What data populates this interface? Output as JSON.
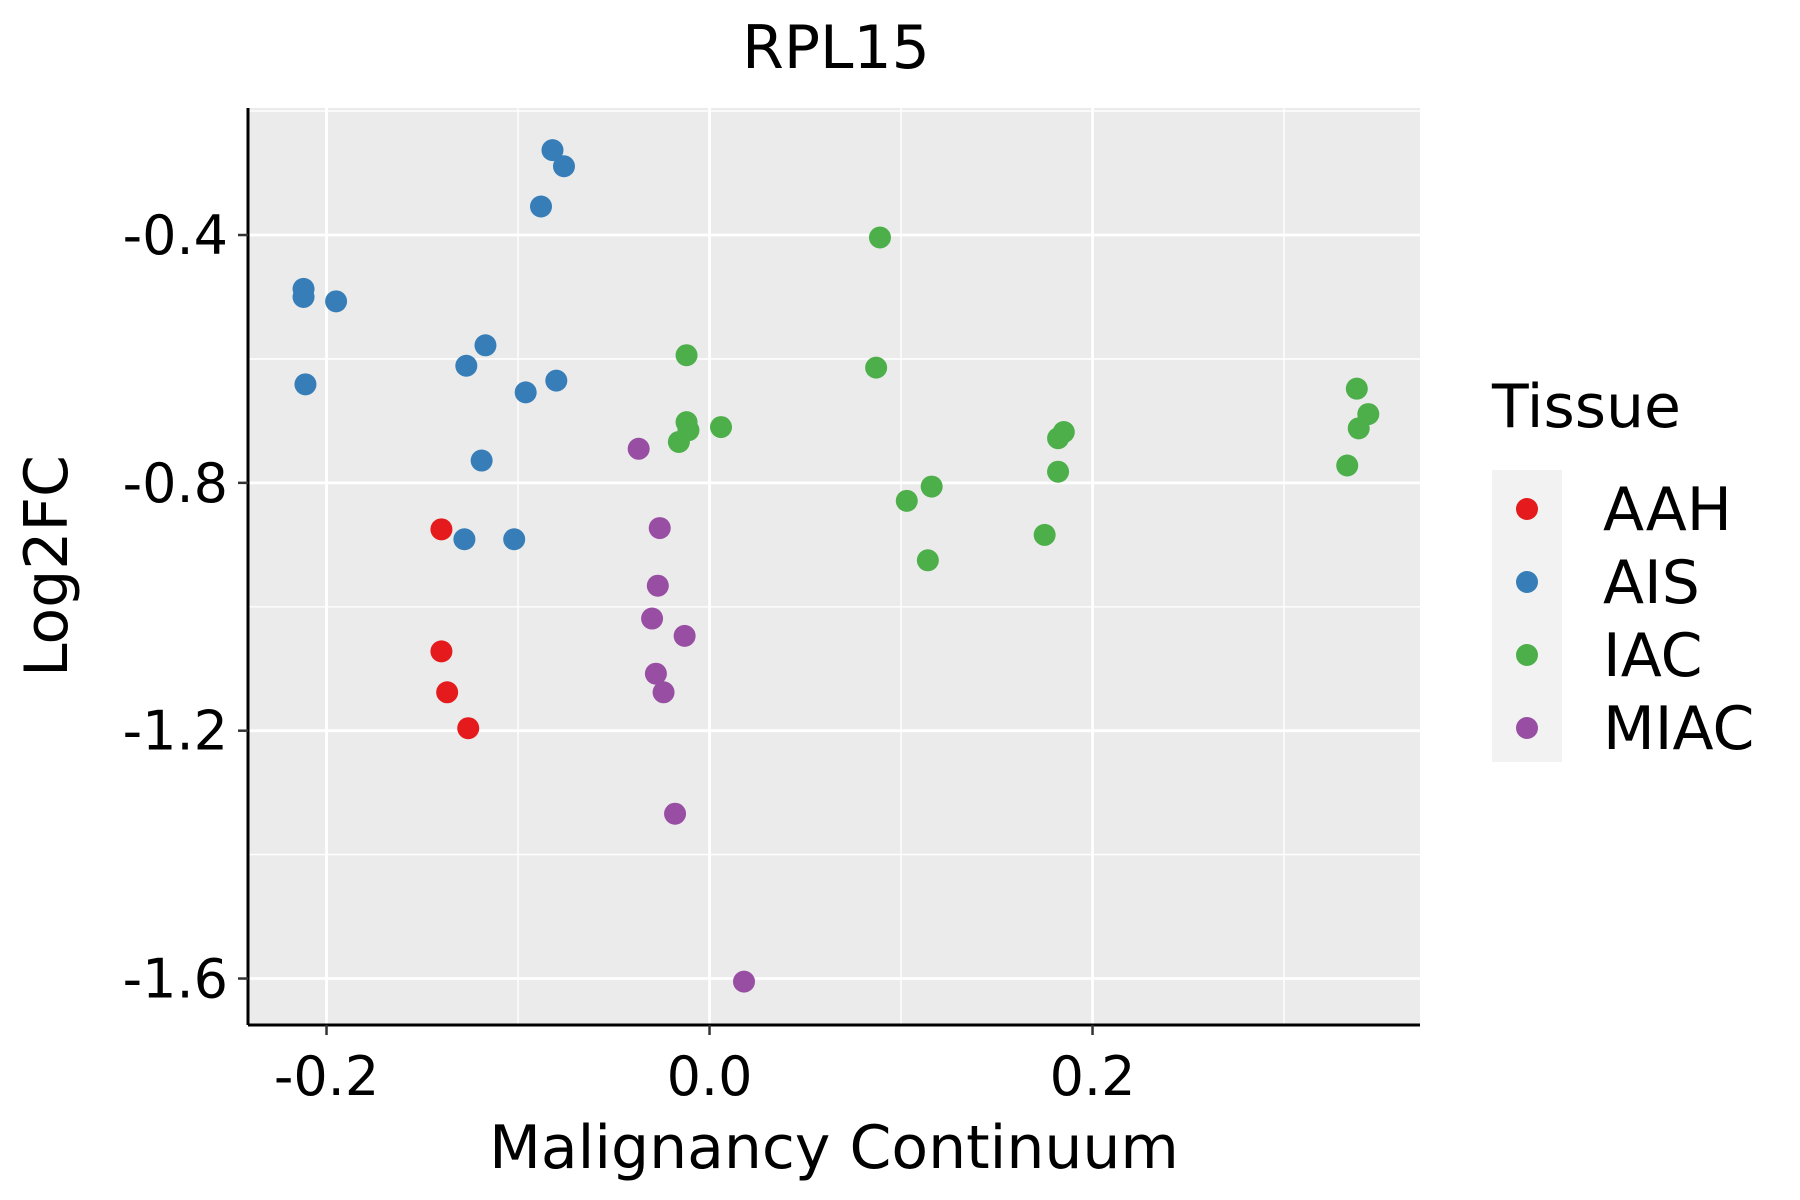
{
  "chart_data": {
    "type": "scatter",
    "title": "RPL15",
    "xlabel": "Malignancy Continuum",
    "ylabel": "Log2FC",
    "xlim": [
      -0.241,
      0.371
    ],
    "ylim": [
      -1.675,
      -0.195
    ],
    "x_ticks": [
      -0.2,
      0.0,
      0.2
    ],
    "x_tick_labels": [
      "-0.2",
      "0.0",
      "0.2"
    ],
    "y_ticks": [
      -0.4,
      -0.8,
      -1.2,
      -1.6
    ],
    "y_tick_labels": [
      "-0.4",
      "-0.8",
      "-1.2",
      "-1.6"
    ],
    "grid": true,
    "legend_title": "Tissue",
    "legend_position": "right",
    "series": [
      {
        "name": "AAH",
        "color": "#e41a1c",
        "points": [
          {
            "x": -0.14,
            "y": -0.875
          },
          {
            "x": -0.14,
            "y": -1.072
          },
          {
            "x": -0.137,
            "y": -1.138
          },
          {
            "x": -0.126,
            "y": -1.196
          }
        ]
      },
      {
        "name": "AIS",
        "color": "#377eb8",
        "points": [
          {
            "x": -0.082,
            "y": -0.263
          },
          {
            "x": -0.076,
            "y": -0.289
          },
          {
            "x": -0.088,
            "y": -0.354
          },
          {
            "x": -0.212,
            "y": -0.487
          },
          {
            "x": -0.212,
            "y": -0.5
          },
          {
            "x": -0.195,
            "y": -0.507
          },
          {
            "x": -0.117,
            "y": -0.578
          },
          {
            "x": -0.127,
            "y": -0.611
          },
          {
            "x": -0.211,
            "y": -0.641
          },
          {
            "x": -0.08,
            "y": -0.635
          },
          {
            "x": -0.096,
            "y": -0.654
          },
          {
            "x": -0.119,
            "y": -0.764
          },
          {
            "x": -0.128,
            "y": -0.891
          },
          {
            "x": -0.102,
            "y": -0.891
          }
        ]
      },
      {
        "name": "IAC",
        "color": "#4daf4a",
        "points": [
          {
            "x": 0.089,
            "y": -0.404
          },
          {
            "x": -0.012,
            "y": -0.594
          },
          {
            "x": 0.087,
            "y": -0.614
          },
          {
            "x": -0.012,
            "y": -0.702
          },
          {
            "x": -0.011,
            "y": -0.715
          },
          {
            "x": 0.006,
            "y": -0.71
          },
          {
            "x": -0.016,
            "y": -0.734
          },
          {
            "x": 0.338,
            "y": -0.648
          },
          {
            "x": 0.344,
            "y": -0.689
          },
          {
            "x": 0.339,
            "y": -0.712
          },
          {
            "x": 0.185,
            "y": -0.718
          },
          {
            "x": 0.182,
            "y": -0.728
          },
          {
            "x": 0.333,
            "y": -0.772
          },
          {
            "x": 0.182,
            "y": -0.782
          },
          {
            "x": 0.116,
            "y": -0.806
          },
          {
            "x": 0.103,
            "y": -0.829
          },
          {
            "x": 0.175,
            "y": -0.884
          },
          {
            "x": 0.114,
            "y": -0.925
          }
        ]
      },
      {
        "name": "MIAC",
        "color": "#984ea3",
        "points": [
          {
            "x": -0.037,
            "y": -0.745
          },
          {
            "x": -0.026,
            "y": -0.873
          },
          {
            "x": -0.027,
            "y": -0.966
          },
          {
            "x": -0.03,
            "y": -1.019
          },
          {
            "x": -0.013,
            "y": -1.047
          },
          {
            "x": -0.028,
            "y": -1.108
          },
          {
            "x": -0.024,
            "y": -1.138
          },
          {
            "x": -0.018,
            "y": -1.334
          },
          {
            "x": 0.018,
            "y": -1.605
          }
        ]
      }
    ]
  }
}
